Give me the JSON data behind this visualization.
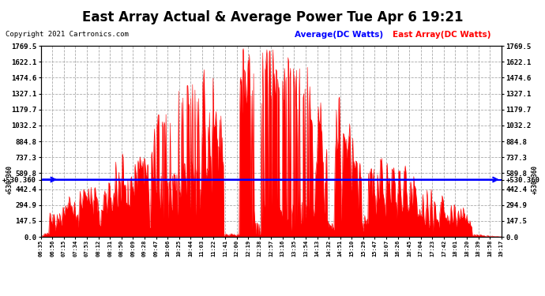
{
  "title": "East Array Actual & Average Power Tue Apr 6 19:21",
  "copyright": "Copyright 2021 Cartronics.com",
  "legend_avg": "Average(DC Watts)",
  "legend_east": "East Array(DC Watts)",
  "avg_value": 530.36,
  "ymax": 1769.5,
  "ymin": 0.0,
  "yticks": [
    0.0,
    147.5,
    294.9,
    442.4,
    530.36,
    589.8,
    737.3,
    884.8,
    1032.2,
    1179.7,
    1327.1,
    1474.6,
    1622.1,
    1769.5
  ],
  "background_color": "#ffffff",
  "fill_color": "#ff0000",
  "line_color": "#ff0000",
  "avg_line_color": "#0000ff",
  "grid_color": "#aaaaaa",
  "title_color": "#000000",
  "copyright_color": "#000000",
  "legend_avg_color": "#0000ff",
  "legend_east_color": "#ff0000",
  "x_labels": [
    "06:35",
    "06:56",
    "07:15",
    "07:34",
    "07:53",
    "08:12",
    "08:31",
    "08:50",
    "09:09",
    "09:28",
    "09:47",
    "10:06",
    "10:25",
    "10:44",
    "11:03",
    "11:22",
    "11:41",
    "12:00",
    "12:19",
    "12:38",
    "12:57",
    "13:16",
    "13:35",
    "13:54",
    "14:13",
    "14:32",
    "14:51",
    "15:10",
    "15:29",
    "15:47",
    "16:07",
    "16:26",
    "16:45",
    "17:04",
    "17:23",
    "17:42",
    "18:01",
    "18:20",
    "18:39",
    "18:58",
    "19:17"
  ]
}
